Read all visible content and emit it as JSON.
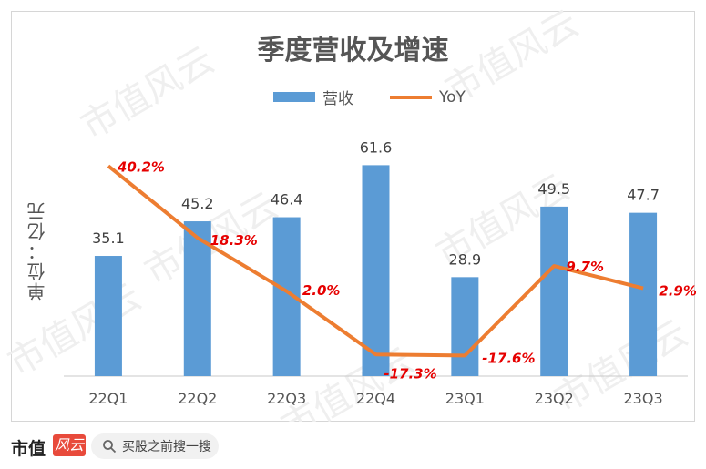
{
  "brand": {
    "name": "市值",
    "mark": "风云"
  },
  "search": {
    "placeholder": "买股之前搜一搜"
  },
  "watermark_text": "市值风云",
  "chart_data": {
    "type": "bar+line",
    "title": "季度营收及增速",
    "ylabel": "单位：亿元",
    "categories": [
      "22Q1",
      "22Q2",
      "22Q3",
      "22Q4",
      "23Q1",
      "23Q2",
      "23Q3"
    ],
    "series": [
      {
        "name": "营收",
        "type": "bar",
        "color": "#5b9bd5",
        "values": [
          35.1,
          45.2,
          46.4,
          61.6,
          28.9,
          49.5,
          47.7
        ],
        "labels": [
          "35.1",
          "45.2",
          "46.4",
          "61.6",
          "28.9",
          "49.5",
          "47.7"
        ]
      },
      {
        "name": "YoY",
        "type": "line",
        "color": "#ed7d31",
        "values": [
          40.2,
          18.3,
          2.0,
          -17.3,
          -17.6,
          9.7,
          2.9
        ],
        "labels": [
          "40.2%",
          "18.3%",
          "2.0%",
          "-17.3%",
          "-17.6%",
          "9.7%",
          "2.9%"
        ]
      }
    ],
    "label_color": "#e60000",
    "legend_position": "top",
    "grid": false
  }
}
